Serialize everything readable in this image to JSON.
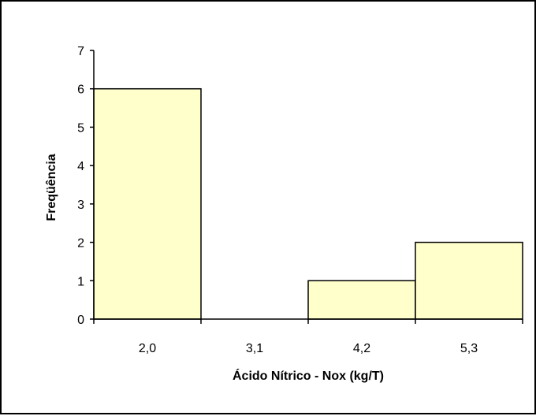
{
  "chart_data": {
    "type": "bar",
    "title": "",
    "categories": [
      "2,0",
      "3,1",
      "4,2",
      "5,3"
    ],
    "values": [
      6,
      0,
      1,
      2
    ],
    "xlabel": "Ácido Nítrico - Nox (kg/T)",
    "ylabel": "Freqüência",
    "ylim": [
      0,
      7
    ],
    "yticks": [
      "0",
      "1",
      "2",
      "3",
      "4",
      "5",
      "6",
      "7"
    ],
    "grid": false,
    "legend": "none",
    "bar_color": "#ffffcc",
    "bar_edge_color": "#000000"
  }
}
